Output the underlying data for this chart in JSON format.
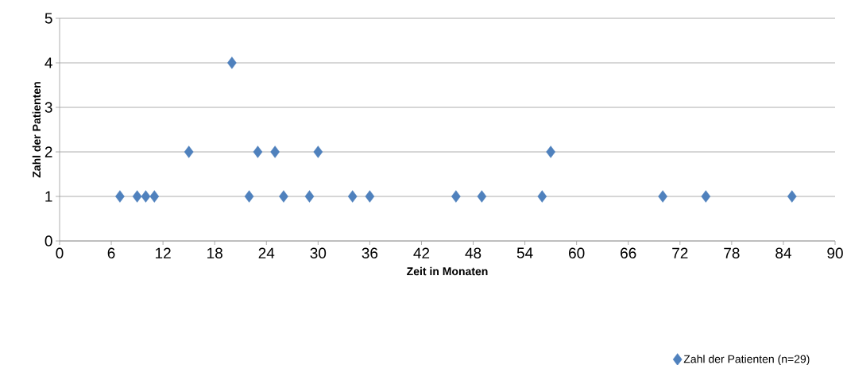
{
  "chart_data": {
    "type": "scatter",
    "xlabel": "Zeit in Monaten",
    "ylabel": "Zahl der Patienten",
    "x": [
      7,
      9,
      10,
      11,
      15,
      20,
      22,
      23,
      25,
      26,
      29,
      30,
      34,
      36,
      46,
      49,
      56,
      57,
      70,
      75,
      85
    ],
    "series": [
      {
        "name": "Zahl der Patienten (n=29)",
        "color": "#4f81bd",
        "values": [
          1,
          1,
          1,
          1,
          2,
          4,
          1,
          2,
          2,
          1,
          1,
          2,
          1,
          1,
          1,
          1,
          1,
          2,
          1,
          1,
          1
        ]
      }
    ],
    "xlim": [
      0,
      90
    ],
    "xticks": [
      0,
      6,
      12,
      18,
      24,
      30,
      36,
      42,
      48,
      54,
      60,
      66,
      72,
      78,
      84,
      90
    ],
    "ylim": [
      0,
      5
    ],
    "yticks": [
      0,
      1,
      2,
      3,
      4,
      5
    ],
    "grid": "y",
    "legend": "bottom right",
    "marker": "diamond"
  }
}
